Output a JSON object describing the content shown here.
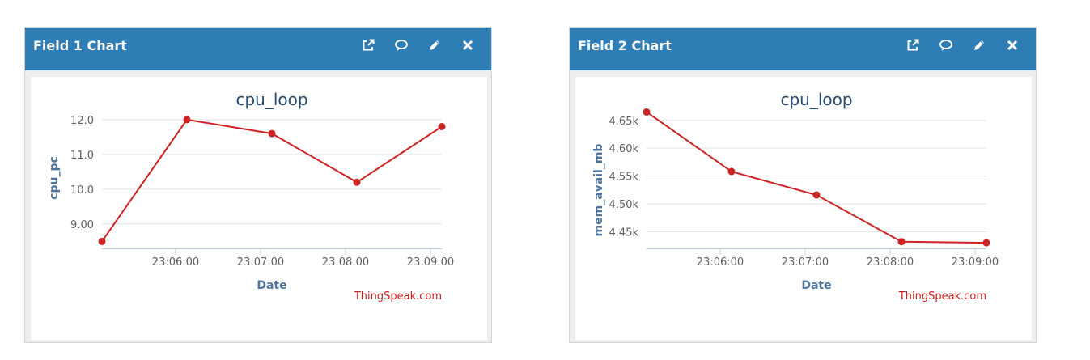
{
  "colors": {
    "header": "#2e7db5",
    "series": "#cc2424",
    "grid": "#e2e2e2",
    "axis": "#c0d0e0"
  },
  "panels": [
    {
      "title": "Field 1 Chart",
      "icons": [
        "external-link-icon",
        "comment-icon",
        "pencil-icon",
        "close-icon"
      ],
      "credit": "ThingSpeak.com",
      "chart_data": {
        "type": "line",
        "title": "cpu_loop",
        "xlabel": "Date",
        "ylabel": "cpu_pc",
        "x": [
          "23:05:08",
          "23:06:08",
          "23:07:08",
          "23:08:08",
          "23:09:08"
        ],
        "x_ticks": [
          "23:06:00",
          "23:07:00",
          "23:08:00",
          "23:09:00"
        ],
        "y_ticks": [
          "9.00",
          "10.0",
          "11.0",
          "12.0"
        ],
        "ylim": [
          8.3,
          12.3
        ],
        "grid": true,
        "series": [
          {
            "values": [
              8.5,
              12.0,
              11.6,
              10.2,
              11.8
            ]
          }
        ]
      }
    },
    {
      "title": "Field 2 Chart",
      "icons": [
        "external-link-icon",
        "comment-icon",
        "pencil-icon",
        "close-icon"
      ],
      "credit": "ThingSpeak.com",
      "chart_data": {
        "type": "line",
        "title": "cpu_loop",
        "xlabel": "Date",
        "ylabel": "mem_avail_mb",
        "x": [
          "23:05:08",
          "23:06:08",
          "23:07:08",
          "23:08:08",
          "23:09:08"
        ],
        "x_ticks": [
          "23:06:00",
          "23:07:00",
          "23:08:00",
          "23:09:00"
        ],
        "y_ticks": [
          "4.45k",
          "4.50k",
          "4.55k",
          "4.60k",
          "4.65k"
        ],
        "ylim": [
          4420,
          4670
        ],
        "grid": true,
        "series": [
          {
            "values": [
              4665,
              4558,
              4516,
              4432,
              4430
            ]
          }
        ]
      }
    }
  ]
}
